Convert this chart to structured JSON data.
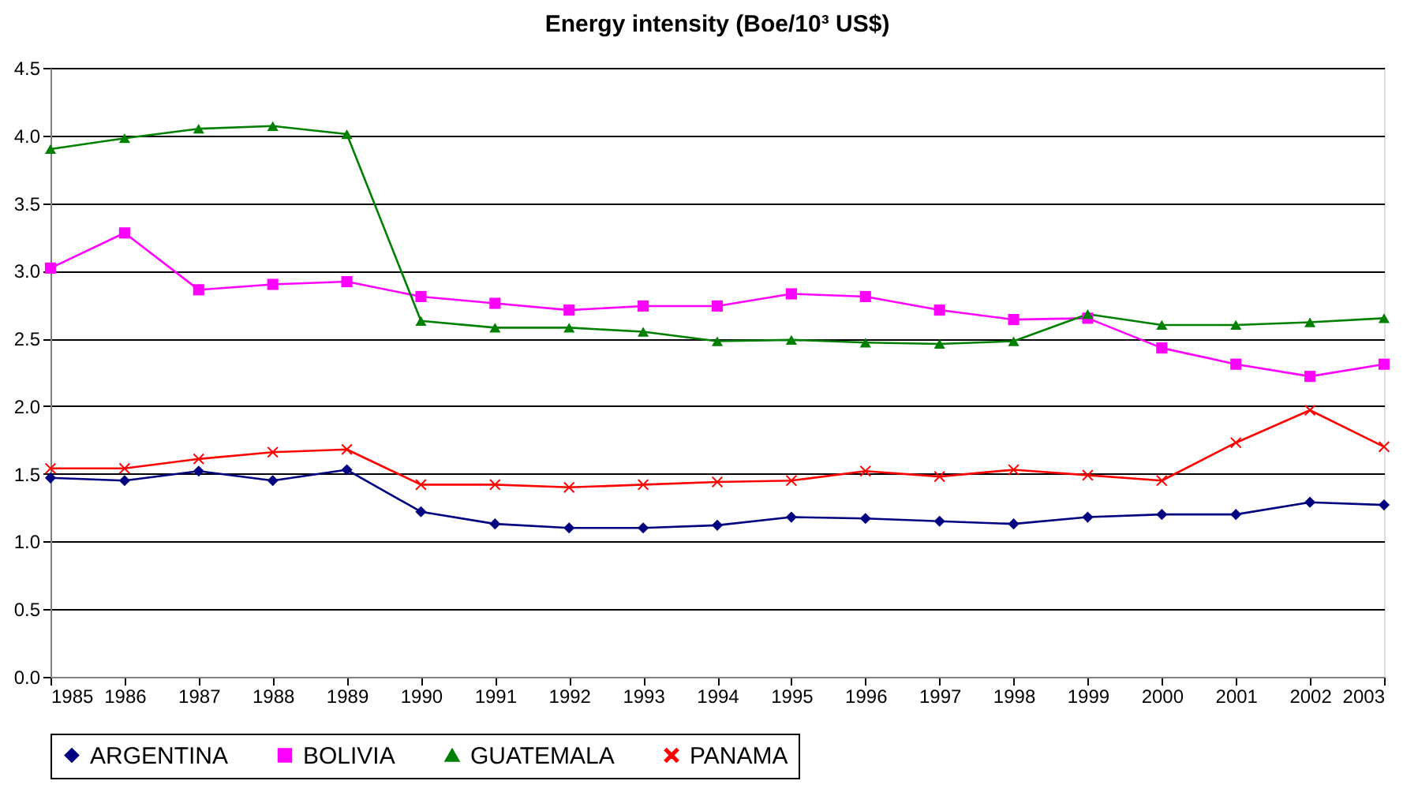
{
  "chart_data": {
    "type": "line",
    "title": "Energy intensity (Boe/10³ US$)",
    "x": [
      1985,
      1986,
      1987,
      1988,
      1989,
      1990,
      1991,
      1992,
      1993,
      1994,
      1995,
      1996,
      1997,
      1998,
      1999,
      2000,
      2001,
      2002,
      2003
    ],
    "xlim": [
      1985,
      2003
    ],
    "xticks": [
      1985,
      1986,
      1987,
      1988,
      1989,
      1990,
      1991,
      1992,
      1993,
      1994,
      1995,
      1996,
      1997,
      1998,
      1999,
      2000,
      2001,
      2002,
      2003
    ],
    "ylim": [
      0,
      4.5
    ],
    "yticks": [
      {
        "value": 0,
        "label": "0.0"
      },
      0.5,
      {
        "value": 1,
        "label": "1.0"
      },
      1.5,
      {
        "value": 2,
        "label": "2.0"
      },
      2.5,
      {
        "value": 3,
        "label": "3.0"
      },
      3.5,
      {
        "value": 4,
        "label": "4.0"
      },
      4.5
    ],
    "grid": "y",
    "legend": "bottom",
    "line_style": "solid",
    "series": [
      {
        "name": "ARGENTINA",
        "color": "#000080",
        "marker": "diamond",
        "values": [
          1.47,
          1.45,
          1.52,
          1.45,
          1.53,
          1.22,
          1.13,
          1.1,
          1.1,
          1.12,
          1.18,
          1.17,
          1.15,
          1.13,
          1.18,
          1.2,
          1.2,
          1.29,
          1.27
        ]
      },
      {
        "name": "BOLIVIA",
        "color": "#ff00ff",
        "marker": "square",
        "values": [
          3.02,
          3.28,
          2.86,
          2.9,
          2.92,
          2.81,
          2.76,
          2.71,
          2.74,
          2.74,
          2.83,
          2.81,
          2.71,
          2.64,
          2.65,
          2.43,
          2.31,
          2.22,
          2.31
        ]
      },
      {
        "name": "GUATEMALA",
        "color": "#008000",
        "marker": "triangle",
        "values": [
          3.9,
          3.98,
          4.05,
          4.07,
          4.01,
          2.63,
          2.58,
          2.58,
          2.55,
          2.48,
          2.49,
          2.47,
          2.46,
          2.48,
          2.68,
          2.6,
          2.6,
          2.62,
          2.65
        ]
      },
      {
        "name": "PANAMA",
        "color": "#ff0000",
        "marker": "cross",
        "values": [
          1.54,
          1.54,
          1.61,
          1.66,
          1.68,
          1.42,
          1.42,
          1.4,
          1.42,
          1.44,
          1.45,
          1.52,
          1.48,
          1.53,
          1.49,
          1.45,
          1.73,
          1.97,
          1.7
        ]
      }
    ]
  }
}
